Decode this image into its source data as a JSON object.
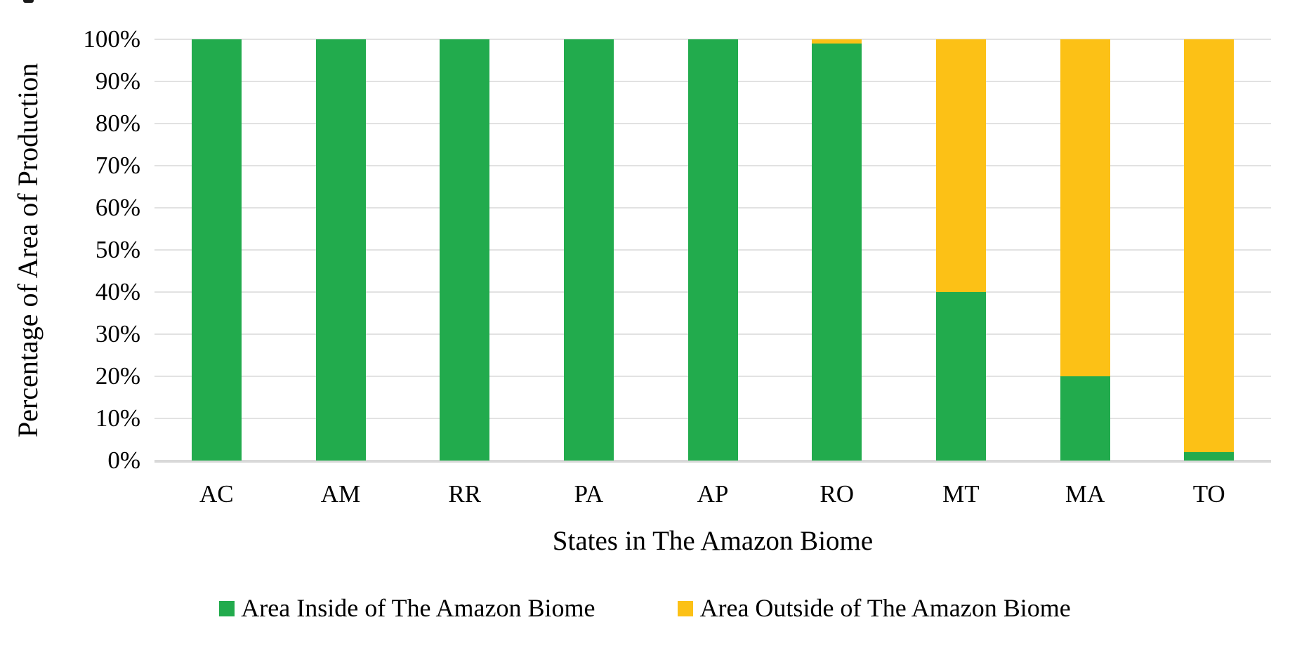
{
  "chart_data": {
    "type": "bar",
    "stacked": true,
    "orientation": "vertical",
    "title": "",
    "xlabel": "States in The Amazon Biome",
    "ylabel": "Percentage of Area of Production",
    "categories": [
      "AC",
      "AM",
      "RR",
      "PA",
      "AP",
      "RO",
      "MT",
      "MA",
      "TO"
    ],
    "series": [
      {
        "name": "Area Inside of The Amazon Biome",
        "color": "#22AB4D",
        "values": [
          100,
          100,
          100,
          100,
          100,
          99,
          40,
          20,
          2
        ]
      },
      {
        "name": "Area Outside of The Amazon Biome",
        "color": "#FCC116",
        "values": [
          0,
          0,
          0,
          0,
          0,
          1,
          60,
          80,
          98
        ]
      }
    ],
    "y_ticks": [
      "0%",
      "10%",
      "20%",
      "30%",
      "40%",
      "50%",
      "60%",
      "70%",
      "80%",
      "90%",
      "100%"
    ],
    "ylim": [
      0,
      100
    ],
    "grid": true,
    "gridline_color": "#e2e2e2",
    "axis_line_color": "#d9d9d9",
    "legend_position": "bottom"
  }
}
